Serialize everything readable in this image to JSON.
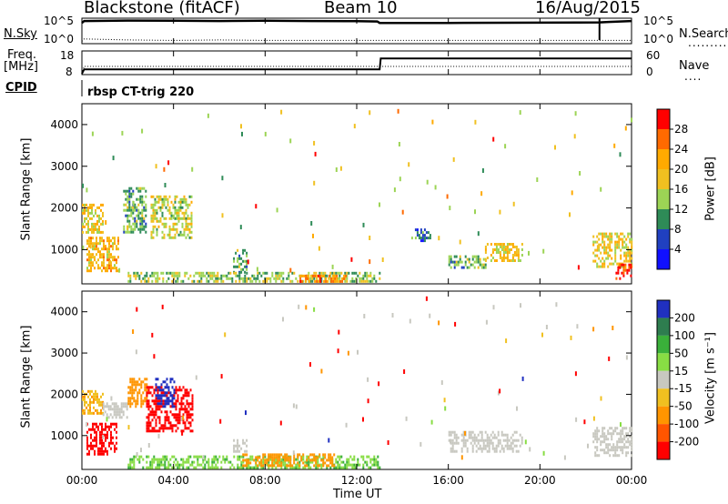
{
  "header": {
    "station": "Blackstone (fitACF)",
    "beam": "Beam 10",
    "date": "16/Aug/2015"
  },
  "top_panels": {
    "nsky_label": "N.Sky",
    "nsky_ticks": [
      "10^5",
      "10^0"
    ],
    "nsearch_label": "N.Search",
    "nsearch_ticks": [
      "10^5",
      "10^0"
    ],
    "freq_label_1": "Freq.",
    "freq_label_2": "[MHz]",
    "freq_ticks": [
      "18",
      "8"
    ],
    "nave_label": "Nave",
    "nave_ticks": [
      "60",
      "0"
    ],
    "cpid_label": "CPID",
    "cpid_text": "rbsp CT-trig 220"
  },
  "power_panel": {
    "ylabel": "Slant Range [km]",
    "yticks": [
      "4000",
      "3000",
      "2000",
      "1000"
    ],
    "colorbar_label": "Power [dB]",
    "colorbar_ticks": [
      "28",
      "24",
      "20",
      "16",
      "12",
      "8",
      "4"
    ],
    "colorbar_colors": [
      "#ff0000",
      "#ff6a00",
      "#ffaa00",
      "#f0c020",
      "#9cd455",
      "#2e8b57",
      "#2040c0",
      "#1010ff"
    ]
  },
  "velocity_panel": {
    "ylabel": "Slant Range [km]",
    "yticks": [
      "4000",
      "3000",
      "2000",
      "1000"
    ],
    "colorbar_label": "Velocity [m s⁻¹]",
    "colorbar_ticks": [
      "200",
      "100",
      "50",
      "15",
      "-15",
      "-50",
      "-100",
      "-200"
    ],
    "colorbar_colors": [
      "#2030c0",
      "#2e7d4f",
      "#3ab03a",
      "#88dd44",
      "#c8c8c0",
      "#f0c020",
      "#ff9500",
      "#ff5500",
      "#ff0000"
    ]
  },
  "x_axis": {
    "xlabel": "Time UT",
    "ticks": [
      "00:00",
      "04:00",
      "08:00",
      "12:00",
      "16:00",
      "20:00",
      "00:00"
    ]
  },
  "chart_data": [
    {
      "type": "line",
      "name": "N.Sky / N.Search",
      "x_hours": [
        0,
        0.1,
        2,
        4,
        6,
        8,
        10,
        12,
        12.9,
        13,
        16,
        20,
        22.6,
        23,
        24
      ],
      "nsky_log10": [
        4.2,
        4.6,
        4.7,
        4.65,
        4.6,
        4.65,
        4.6,
        4.55,
        4.5,
        4.2,
        4.2,
        4.25,
        4.3,
        4.4,
        4.6
      ],
      "nsearch_log10": [
        0.3,
        0.8,
        0.6,
        0.5,
        0.6,
        0.5,
        0.5,
        0.5,
        0.5,
        0.5,
        0.5,
        0.5,
        0.5,
        0.5,
        0.5
      ],
      "ylim": [
        0,
        5
      ]
    },
    {
      "type": "line",
      "name": "Freq / Nave",
      "x_hours": [
        0,
        0.1,
        13,
        13.05,
        24
      ],
      "freq_mhz": [
        8,
        10,
        10,
        15,
        15
      ],
      "nave": [
        0,
        20,
        20,
        20,
        20
      ],
      "ylim_freq": [
        8,
        18
      ],
      "ylim_nave": [
        0,
        60
      ]
    },
    {
      "type": "heatmap",
      "name": "Power",
      "x_range_hours": [
        0,
        24
      ],
      "y_range_km": [
        180,
        4500
      ],
      "unit": "dB",
      "regions": [
        {
          "t0": 0.0,
          "t1": 0.9,
          "r0": 1400,
          "r1": 2100,
          "value": 18
        },
        {
          "t0": 0.2,
          "t1": 1.6,
          "r0": 450,
          "r1": 1300,
          "value": 20
        },
        {
          "t0": 1.8,
          "t1": 2.8,
          "r0": 1400,
          "r1": 2500,
          "value": 12
        },
        {
          "t0": 3.0,
          "t1": 4.8,
          "r0": 1300,
          "r1": 2300,
          "value": 16
        },
        {
          "t0": 6.6,
          "t1": 7.2,
          "r0": 450,
          "r1": 1000,
          "value": 12
        },
        {
          "t0": 2.0,
          "t1": 13.0,
          "r0": 200,
          "r1": 450,
          "value": 14
        },
        {
          "t0": 9.5,
          "t1": 11.5,
          "r0": 220,
          "r1": 380,
          "value": 24
        },
        {
          "t0": 14.3,
          "t1": 15.2,
          "r0": 1200,
          "r1": 1500,
          "value": 8
        },
        {
          "t0": 16.0,
          "t1": 17.6,
          "r0": 550,
          "r1": 850,
          "value": 12
        },
        {
          "t0": 17.6,
          "t1": 19.2,
          "r0": 700,
          "r1": 1150,
          "value": 18
        },
        {
          "t0": 22.3,
          "t1": 24.0,
          "r0": 600,
          "r1": 1400,
          "value": 18
        },
        {
          "t0": 23.3,
          "t1": 24.0,
          "r0": 300,
          "r1": 650,
          "value": 28
        }
      ]
    },
    {
      "type": "heatmap",
      "name": "Velocity",
      "x_range_hours": [
        0,
        24
      ],
      "y_range_km": [
        180,
        4500
      ],
      "unit": "m s-1",
      "regions": [
        {
          "t0": 0.0,
          "t1": 0.9,
          "r0": 1500,
          "r1": 2100,
          "value": -30
        },
        {
          "t0": 0.9,
          "t1": 2.0,
          "r0": 1400,
          "r1": 1800,
          "value": 0
        },
        {
          "t0": 0.2,
          "t1": 1.5,
          "r0": 500,
          "r1": 1300,
          "value": -200
        },
        {
          "t0": 2.0,
          "t1": 2.8,
          "r0": 1700,
          "r1": 2400,
          "value": -40
        },
        {
          "t0": 2.8,
          "t1": 4.8,
          "r0": 1100,
          "r1": 2200,
          "value": -200
        },
        {
          "t0": 3.2,
          "t1": 4.0,
          "r0": 1700,
          "r1": 2400,
          "value": 200
        },
        {
          "t0": 6.6,
          "t1": 7.2,
          "r0": 600,
          "r1": 900,
          "value": 0
        },
        {
          "t0": 2.0,
          "t1": 13.0,
          "r0": 200,
          "r1": 500,
          "value": 30
        },
        {
          "t0": 7.0,
          "t1": 11.0,
          "r0": 250,
          "r1": 550,
          "value": -60
        },
        {
          "t0": 16.0,
          "t1": 19.2,
          "r0": 600,
          "r1": 1100,
          "value": 0
        },
        {
          "t0": 22.3,
          "t1": 24.0,
          "r0": 500,
          "r1": 1200,
          "value": 0
        }
      ]
    }
  ]
}
